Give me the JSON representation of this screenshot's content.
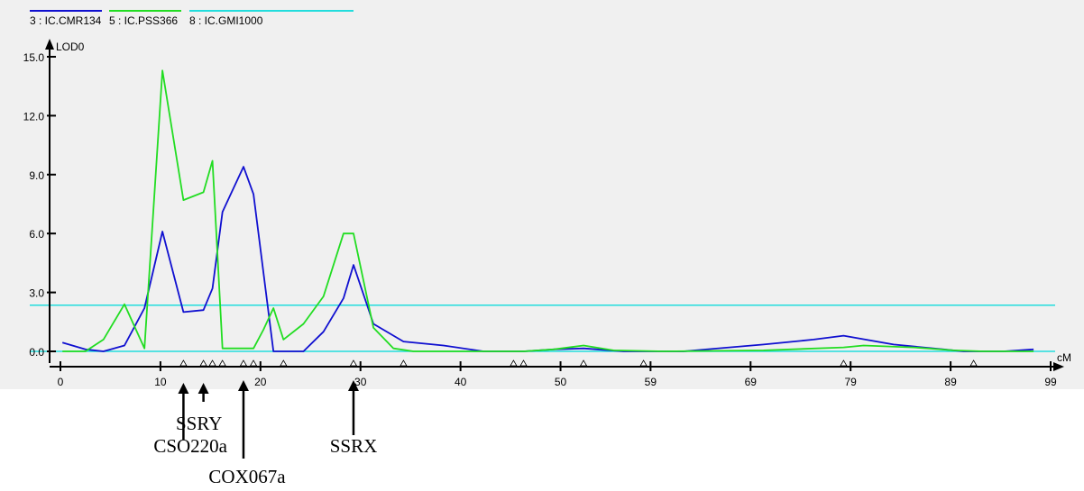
{
  "chart_data": {
    "type": "line",
    "ylabel": "LOD0",
    "xlabel": "cM",
    "xlim": [
      0,
      99
    ],
    "ylim": [
      0,
      15
    ],
    "y_ticks": [
      "0.0",
      "3.0",
      "6.0",
      "9.0",
      "12.0",
      "15.0"
    ],
    "x_ticks": [
      "0",
      "10",
      "20",
      "30",
      "40",
      "50",
      "59",
      "69",
      "79",
      "89",
      "99"
    ],
    "legend": {
      "placement": "top-left",
      "entries": [
        {
          "label": "3 : IC.CMR134",
          "color": "#1010d0"
        },
        {
          "label": "5 : IC.PSS366",
          "color": "#22dd22"
        },
        {
          "label": "8 : IC.GMI1000",
          "color": "#22dddd"
        }
      ]
    },
    "series": [
      {
        "name": "3 : IC.CMR134",
        "color": "#1010d0",
        "points": [
          [
            0.2,
            0.45
          ],
          [
            2.5,
            0.1
          ],
          [
            4.3,
            0.0
          ],
          [
            6.4,
            0.3
          ],
          [
            8.4,
            2.2
          ],
          [
            10.2,
            6.1
          ],
          [
            12.3,
            2.0
          ],
          [
            14.3,
            2.1
          ],
          [
            15.2,
            3.2
          ],
          [
            16.2,
            7.1
          ],
          [
            18.3,
            9.4
          ],
          [
            19.3,
            8.0
          ],
          [
            21.3,
            0.0
          ],
          [
            24.3,
            0.0
          ],
          [
            26.3,
            1.0
          ],
          [
            28.3,
            2.7
          ],
          [
            29.3,
            4.4
          ],
          [
            31.3,
            1.4
          ],
          [
            34.3,
            0.5
          ],
          [
            38.3,
            0.3
          ],
          [
            42.3,
            0.0
          ],
          [
            46.3,
            0.0
          ],
          [
            49.3,
            0.1
          ],
          [
            52.3,
            0.15
          ],
          [
            56.3,
            0.0
          ],
          [
            62.3,
            0.0
          ],
          [
            70.3,
            0.35
          ],
          [
            75.3,
            0.6
          ],
          [
            78.3,
            0.8
          ],
          [
            83.3,
            0.35
          ],
          [
            88.3,
            0.1
          ],
          [
            90.3,
            0.0
          ],
          [
            94.3,
            0.0
          ],
          [
            97.3,
            0.1
          ]
        ]
      },
      {
        "name": "5 : IC.PSS366",
        "color": "#22dd22",
        "points": [
          [
            0.2,
            0.0
          ],
          [
            2.5,
            0.0
          ],
          [
            4.3,
            0.6
          ],
          [
            6.4,
            2.4
          ],
          [
            8.4,
            0.15
          ],
          [
            10.2,
            14.3
          ],
          [
            12.3,
            7.7
          ],
          [
            14.3,
            8.1
          ],
          [
            15.2,
            9.7
          ],
          [
            16.2,
            0.15
          ],
          [
            19.3,
            0.15
          ],
          [
            20.3,
            1.1
          ],
          [
            21.3,
            2.2
          ],
          [
            22.3,
            0.6
          ],
          [
            24.3,
            1.4
          ],
          [
            26.3,
            2.8
          ],
          [
            28.3,
            6.0
          ],
          [
            29.3,
            6.0
          ],
          [
            31.3,
            1.2
          ],
          [
            33.3,
            0.15
          ],
          [
            35.3,
            0.0
          ],
          [
            46.3,
            0.0
          ],
          [
            49.3,
            0.1
          ],
          [
            52.3,
            0.3
          ],
          [
            55.3,
            0.05
          ],
          [
            60.3,
            0.0
          ],
          [
            70.3,
            0.05
          ],
          [
            78.3,
            0.2
          ],
          [
            80.3,
            0.3
          ],
          [
            85.3,
            0.2
          ],
          [
            89.3,
            0.05
          ],
          [
            92.3,
            0.0
          ],
          [
            97.3,
            0.0
          ]
        ]
      },
      {
        "name": "8 : IC.GMI1000",
        "color": "#22dddd",
        "points": [
          [
            0,
            2.35
          ],
          [
            99,
            2.35
          ]
        ]
      },
      {
        "name": "8 : IC.GMI1000",
        "color": "#22dddd",
        "points": [
          [
            0,
            0.0
          ],
          [
            99,
            0.0
          ]
        ]
      }
    ],
    "markers_x": [
      12.3,
      14.3,
      15.2,
      16.2,
      18.3,
      19.3,
      22.3,
      29.3,
      34.3,
      45.3,
      46.3,
      52.3,
      58.3,
      78.3,
      91.3
    ],
    "annotations": [
      {
        "label": "SSRY",
        "x": 14.3
      },
      {
        "label": "CSO220a",
        "x": 12.3
      },
      {
        "label": "SSRX",
        "x": 29.3
      },
      {
        "label": "COX067a",
        "x": 18.3
      }
    ]
  }
}
